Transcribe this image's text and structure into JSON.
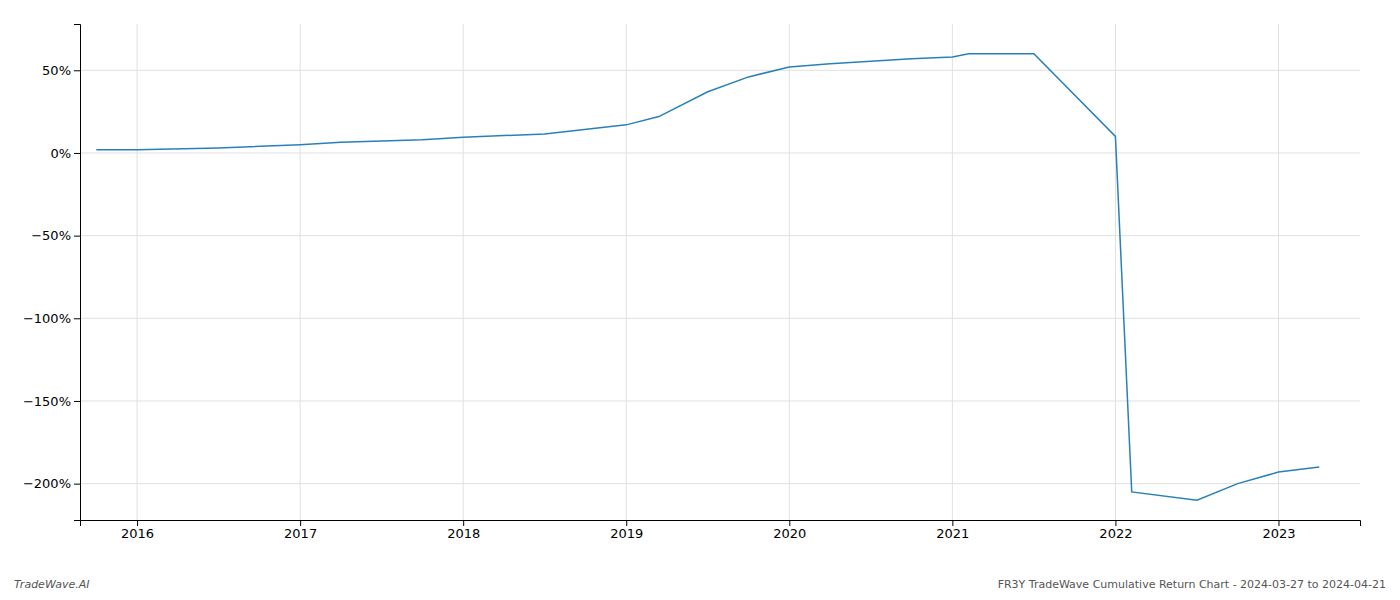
{
  "chart_data": {
    "type": "line",
    "x": [
      2015.75,
      2016.0,
      2016.5,
      2017.0,
      2017.25,
      2017.75,
      2018.0,
      2018.5,
      2019.0,
      2019.2,
      2019.5,
      2019.75,
      2020.0,
      2020.25,
      2020.75,
      2021.0,
      2021.1,
      2021.5,
      2022.0,
      2022.1,
      2022.5,
      2022.75,
      2023.0,
      2023.25
    ],
    "values": [
      2.0,
      2.0,
      3.0,
      5.0,
      6.5,
      8.0,
      9.5,
      11.5,
      17.0,
      22.0,
      37.0,
      46.0,
      52.0,
      54.0,
      57.0,
      58.0,
      60.0,
      60.0,
      10.0,
      -205.0,
      -210.0,
      -200.0,
      -193.0,
      -190.0
    ],
    "color": "#2980b9",
    "xlim": [
      2015.65,
      2023.5
    ],
    "ylim": [
      -222,
      78
    ],
    "xticks": [
      2016,
      2017,
      2018,
      2019,
      2020,
      2021,
      2022,
      2023
    ],
    "yticks": [
      {
        "value": 50,
        "label": "50%"
      },
      {
        "value": 0,
        "label": "0%"
      },
      {
        "value": -50,
        "label": "−50%"
      },
      {
        "value": -100,
        "label": "−100%"
      },
      {
        "value": -150,
        "label": "−150%"
      },
      {
        "value": -200,
        "label": "−200%"
      }
    ],
    "grid": true,
    "annotations": [
      "TradeWave.AI",
      "FR3Y TradeWave Cumulative Return Chart - 2024-03-27 to 2024-04-21"
    ]
  }
}
